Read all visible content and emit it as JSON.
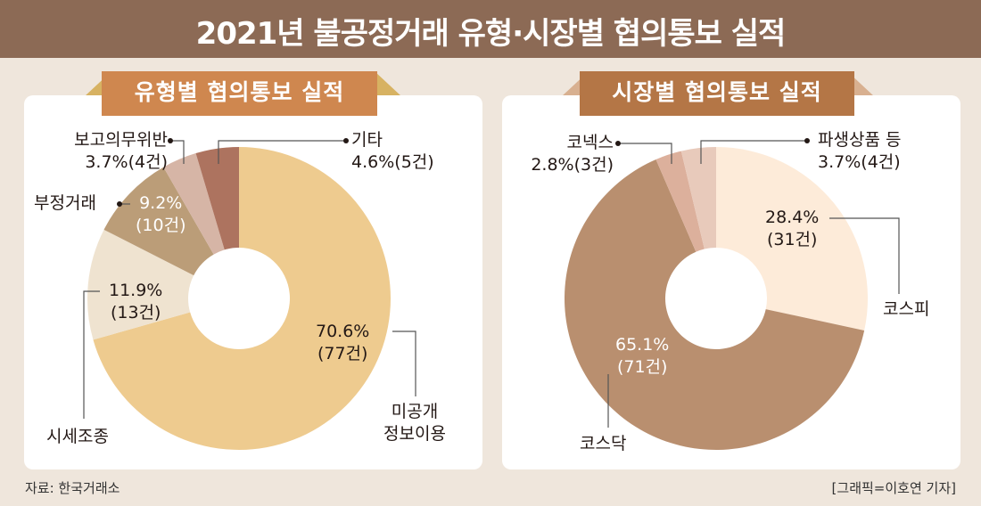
{
  "title": "2021년 불공정거래 유형·시장별 협의통보 실적",
  "footer": {
    "source": "자료: 한국거래소",
    "credit": "[그래픽=이호연 기자]"
  },
  "colors": {
    "title_bg": "#8c6a55",
    "ribbon_left": "#cf874f",
    "ribbon_right": "#b47646"
  },
  "chart_data": [
    {
      "type": "pie",
      "donut": true,
      "title": "유형별 협의통보 실적",
      "slices": [
        {
          "label": "미공개 정보이용",
          "label_lines": [
            "미공개",
            "정보이용"
          ],
          "percent": 70.6,
          "pct_text": "70.6%",
          "count_text": "(77건)",
          "color": "#eecb8f"
        },
        {
          "label": "시세조종",
          "percent": 11.9,
          "pct_text": "11.9%",
          "count_text": "(13건)",
          "color": "#efe3d0"
        },
        {
          "label": "부정거래",
          "percent": 9.2,
          "pct_text": "9.2%",
          "count_text": "(10건)",
          "color": "#bb9d78"
        },
        {
          "label": "보고의무위반",
          "percent": 3.7,
          "pct_text": "3.7%",
          "count_text": "(4건)",
          "color": "#d6b5a6"
        },
        {
          "label": "기타",
          "percent": 4.6,
          "pct_text": "4.6%",
          "count_text": "(5건)",
          "color": "#ad735f"
        }
      ]
    },
    {
      "type": "pie",
      "donut": true,
      "title": "시장별 협의통보 실적",
      "slices": [
        {
          "label": "코스피",
          "percent": 28.4,
          "pct_text": "28.4%",
          "count_text": "(31건)",
          "color": "#fdebd9"
        },
        {
          "label": "코스닥",
          "percent": 65.1,
          "pct_text": "65.1%",
          "count_text": "(71건)",
          "color": "#b98f6f"
        },
        {
          "label": "코넥스",
          "percent": 2.8,
          "pct_text": "2.8%",
          "count_text": "(3건)",
          "color": "#dcb09c"
        },
        {
          "label": "파생상품 등",
          "percent": 3.7,
          "pct_text": "3.7%",
          "count_text": "(4건)",
          "color": "#e8cabb"
        }
      ]
    }
  ]
}
